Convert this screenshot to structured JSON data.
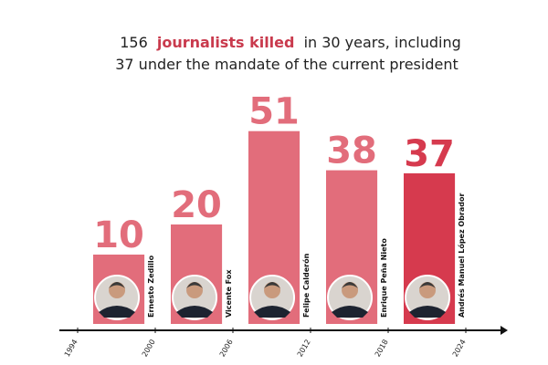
{
  "chart_data": {
    "type": "bar",
    "title": {
      "line1": [
        "156",
        "journalists killed",
        "in 30 years, including"
      ],
      "line2": "37 under the mandate of the current president"
    },
    "categories": [
      "Ernesto Zedillo",
      "Vicente Fox",
      "Felipe Calderón",
      "Enrique Peña Nieto",
      "Andrés Manuel López Obrador"
    ],
    "values": [
      10,
      20,
      51,
      38,
      37
    ],
    "colors": [
      "#e26d7b",
      "#e26d7b",
      "#e26d7b",
      "#e26d7b",
      "#d63a4e"
    ],
    "xlim": [
      1994,
      2024
    ],
    "xticks": [
      1994,
      2000,
      2006,
      2012,
      2018,
      2024
    ]
  }
}
